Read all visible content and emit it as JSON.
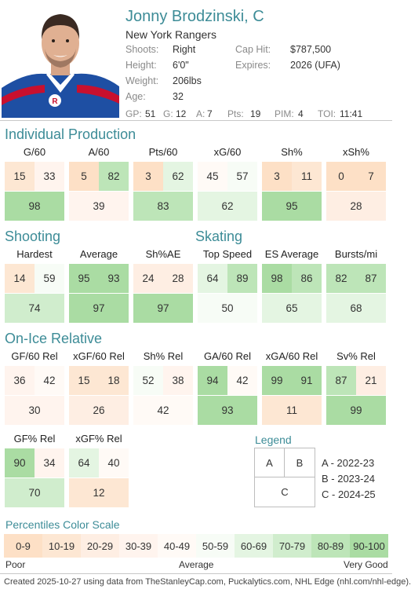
{
  "player": {
    "name": "Jonny Brodzinski, C",
    "team": "New York Rangers",
    "shoots_label": "Shoots:",
    "shoots": "Right",
    "height_label": "Height:",
    "height": "6'0\"",
    "weight_label": "Weight:",
    "weight": "206lbs",
    "age_label": "Age:",
    "age": "32",
    "caphit_label": "Cap Hit:",
    "caphit": "$787,500",
    "expires_label": "Expires:",
    "expires": "2026 (UFA)"
  },
  "statline": {
    "gp_label": "GP:",
    "gp": "51",
    "g_label": "G:",
    "g": "12",
    "a_label": "A:",
    "a": "7",
    "pts_label": "Pts:",
    "pts": "19",
    "pim_label": "PIM:",
    "pim": "4",
    "toi_label": "TOI:",
    "toi": "11:41"
  },
  "sections": {
    "individual": "Individual Production",
    "shooting": "Shooting",
    "skating": "Skating",
    "onice": "On-Ice Relative"
  },
  "metrics": {
    "individual": [
      {
        "label": "G/60",
        "a": "15",
        "b": "33",
        "c": "98"
      },
      {
        "label": "A/60",
        "a": "5",
        "b": "82",
        "c": "39"
      },
      {
        "label": "Pts/60",
        "a": "3",
        "b": "62",
        "c": "83"
      },
      {
        "label": "xG/60",
        "a": "45",
        "b": "57",
        "c": "62"
      },
      {
        "label": "Sh%",
        "a": "3",
        "b": "11",
        "c": "95"
      },
      {
        "label": "xSh%",
        "a": "0",
        "b": "7",
        "c": "28"
      }
    ],
    "shooting_skating": [
      {
        "label": "Hardest",
        "a": "14",
        "b": "59",
        "c": "74"
      },
      {
        "label": "Average",
        "a": "95",
        "b": "93",
        "c": "97"
      },
      {
        "label": "Sh%AE",
        "a": "24",
        "b": "28",
        "c": "97"
      },
      {
        "label": "Top Speed",
        "a": "64",
        "b": "89",
        "c": "50"
      },
      {
        "label": "ES Average",
        "a": "98",
        "b": "86",
        "c": "65"
      },
      {
        "label": "Bursts/mi",
        "a": "82",
        "b": "87",
        "c": "68"
      }
    ],
    "onice": [
      {
        "label": "GF/60 Rel",
        "a": "36",
        "b": "42",
        "c": "30"
      },
      {
        "label": "xGF/60 Rel",
        "a": "15",
        "b": "18",
        "c": "26"
      },
      {
        "label": "Sh% Rel",
        "a": "52",
        "b": "38",
        "c": "42"
      },
      {
        "label": "GA/60 Rel",
        "a": "94",
        "b": "42",
        "c": "93"
      },
      {
        "label": "xGA/60 Rel",
        "a": "99",
        "b": "91",
        "c": "11"
      },
      {
        "label": "Sv% Rel",
        "a": "87",
        "b": "21",
        "c": "99"
      }
    ],
    "onice2": [
      {
        "label": "GF% Rel",
        "a": "90",
        "b": "34",
        "c": "70"
      },
      {
        "label": "xGF% Rel",
        "a": "64",
        "b": "40",
        "c": "12"
      }
    ]
  },
  "legend": {
    "title": "Legend",
    "a": "A",
    "b": "B",
    "c": "C",
    "rows": [
      "A - 2022-23",
      "B - 2023-24",
      "C - 2024-25"
    ]
  },
  "scale": {
    "title": "Percentiles Color Scale",
    "bins": [
      "0-9",
      "10-19",
      "20-29",
      "30-39",
      "40-49",
      "50-59",
      "60-69",
      "70-79",
      "80-89",
      "90-100"
    ],
    "colors": [
      "#fde0c6",
      "#fde7d3",
      "#feeee3",
      "#fff4ee",
      "#fffaf6",
      "#f7fcf6",
      "#e4f5e2",
      "#d0edcd",
      "#bde5b8",
      "#aadca3"
    ],
    "poor": "Poor",
    "average": "Average",
    "very_good": "Very Good"
  },
  "footer": "Created 2025-10-27 using data from TheStanleyCap.com, Puckalytics.com, NHL Edge (nhl.com/nhl-edge)."
}
